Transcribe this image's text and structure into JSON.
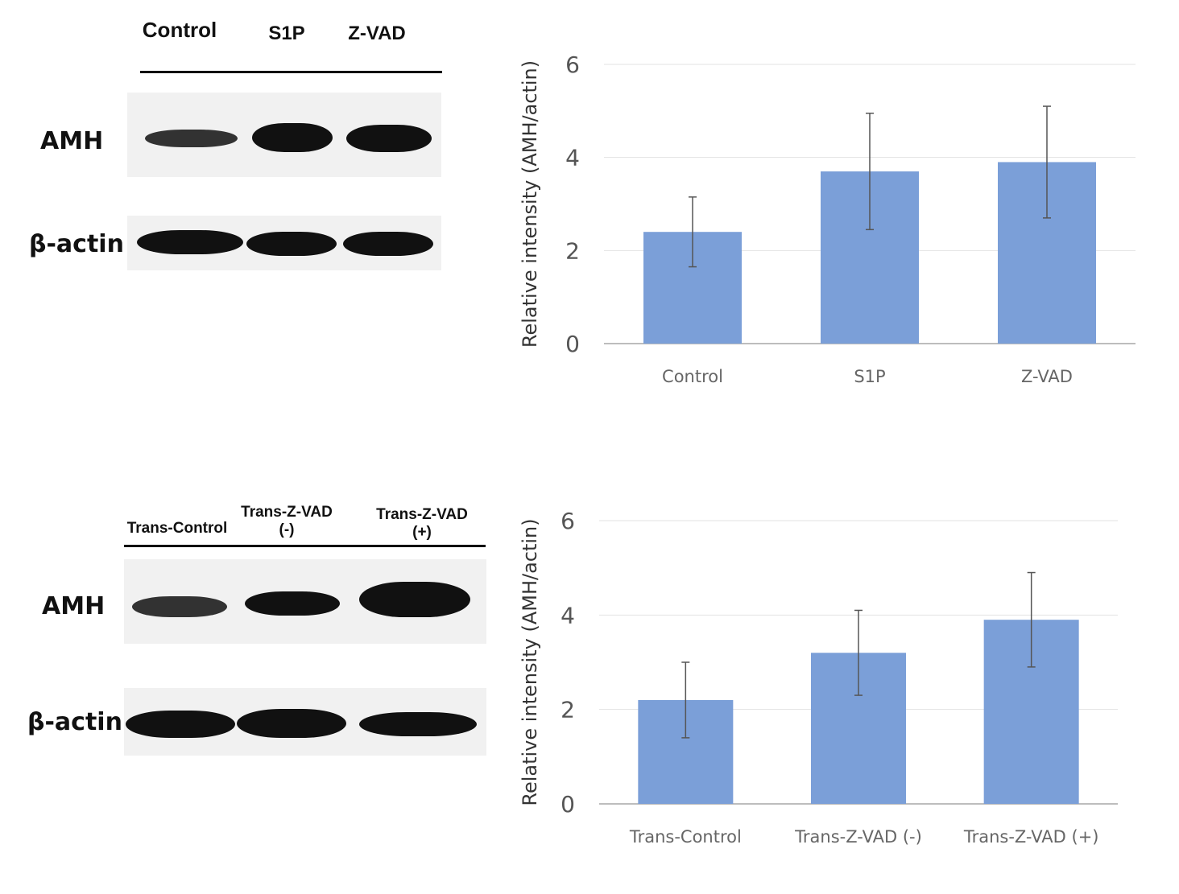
{
  "top_blot": {
    "lanes": [
      "Control",
      "S1P",
      "Z-VAD"
    ],
    "rows": [
      "AMH",
      "β-actin"
    ]
  },
  "bottom_blot": {
    "lanes": [
      "Trans-Control",
      "Trans-Z-VAD\n(-)",
      "Trans-Z-VAD\n(+)"
    ],
    "rows": [
      "AMH",
      "β-actin"
    ]
  },
  "chart_data": [
    {
      "type": "bar",
      "title": "",
      "xlabel": "",
      "ylabel": "Relative intensity (AMH/actin)",
      "categories": [
        "Control",
        "S1P",
        "Z-VAD"
      ],
      "values": [
        2.4,
        3.7,
        3.9
      ],
      "errors": [
        0.75,
        1.25,
        1.2
      ],
      "ylim": [
        0,
        6
      ],
      "yticks": [
        0,
        2,
        4,
        6
      ],
      "grid": true,
      "bar_color": "#7b9fd8"
    },
    {
      "type": "bar",
      "title": "",
      "xlabel": "",
      "ylabel": "Relative intensity (AMH/actin)",
      "categories": [
        "Trans-Control",
        "Trans-Z-VAD (-)",
        "Trans-Z-VAD (+)"
      ],
      "values": [
        2.2,
        3.2,
        3.9
      ],
      "errors": [
        0.8,
        0.9,
        1.0
      ],
      "ylim": [
        0,
        6
      ],
      "yticks": [
        0,
        2,
        4,
        6
      ],
      "grid": true,
      "bar_color": "#7b9fd8"
    }
  ]
}
